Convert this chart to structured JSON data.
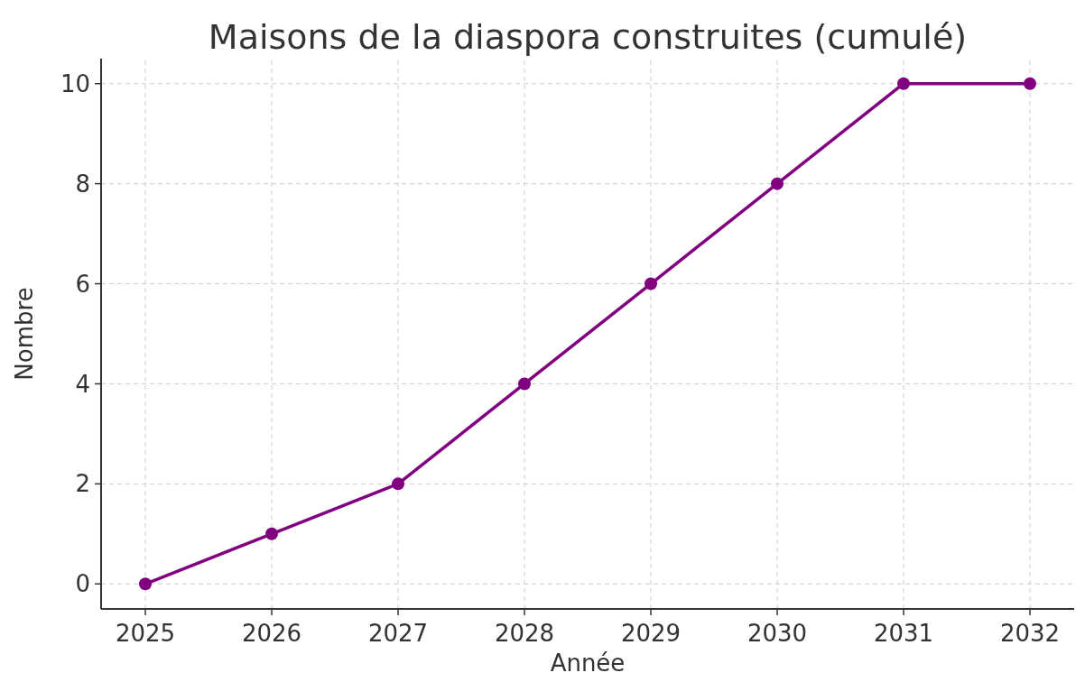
{
  "chart_data": {
    "type": "line",
    "title": "Maisons de la diaspora construites (cumulé)",
    "xlabel": "Année",
    "ylabel": "Nombre",
    "x": [
      2025,
      2026,
      2027,
      2028,
      2029,
      2030,
      2031,
      2032
    ],
    "series": [
      {
        "color": "#800080",
        "values": [
          0,
          1,
          2,
          4,
          6,
          8,
          10,
          10
        ]
      }
    ],
    "xlim": [
      2024.65,
      2032.35
    ],
    "xticks": [
      2025,
      2026,
      2027,
      2028,
      2029,
      2030,
      2031,
      2032
    ],
    "ylim": [
      -0.5,
      10.5
    ],
    "yticks": [
      0,
      2,
      4,
      6,
      8,
      10
    ],
    "grid": true,
    "marker": "circle",
    "line_style": "solid"
  }
}
